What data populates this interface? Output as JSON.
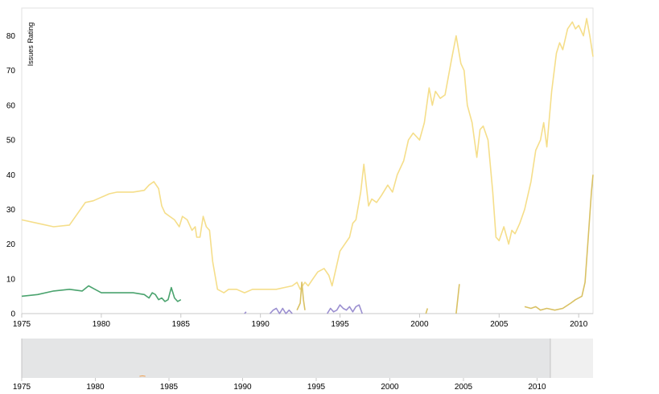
{
  "chart_data": {
    "type": "line",
    "title": "",
    "ylabel": "Issues Rating",
    "xlabel": "",
    "xlim": [
      1975,
      2010.9
    ],
    "ylim": [
      0,
      88
    ],
    "grid": false,
    "x_ticks": [
      "1975",
      "1980",
      "1985",
      "1990",
      "1995",
      "2000",
      "2005",
      "2010"
    ],
    "y_ticks": [
      "0",
      "10",
      "20",
      "30",
      "40",
      "50",
      "60",
      "70",
      "80"
    ],
    "navigator": {
      "xlim": [
        1975,
        2013.8
      ],
      "x_ticks": [
        "1975",
        "1980",
        "1985",
        "1990",
        "1995",
        "2000",
        "2005",
        "2010"
      ],
      "selected_range": [
        1975,
        2010.9
      ]
    },
    "series": [
      {
        "name": "series-light-yellow",
        "color": "#f5de8a",
        "points": [
          [
            1975,
            27
          ],
          [
            1976,
            26
          ],
          [
            1977,
            25
          ],
          [
            1978,
            25.5
          ],
          [
            1979,
            32
          ],
          [
            1979.5,
            32.5
          ],
          [
            1980,
            33.5
          ],
          [
            1980.5,
            34.5
          ],
          [
            1981,
            35
          ],
          [
            1982,
            35
          ],
          [
            1982.7,
            35.5
          ],
          [
            1983,
            37
          ],
          [
            1983.3,
            38
          ],
          [
            1983.6,
            36
          ],
          [
            1983.8,
            31
          ],
          [
            1984,
            29
          ],
          [
            1984.3,
            28
          ],
          [
            1984.6,
            27
          ],
          [
            1984.9,
            25
          ],
          [
            1985.1,
            28
          ],
          [
            1985.4,
            27
          ],
          [
            1985.7,
            24
          ],
          [
            1985.9,
            25
          ],
          [
            1986,
            22
          ],
          [
            1986.2,
            22
          ],
          [
            1986.4,
            28
          ],
          [
            1986.6,
            25
          ],
          [
            1986.8,
            24
          ],
          [
            1987,
            15
          ],
          [
            1987.3,
            7
          ],
          [
            1987.7,
            6
          ],
          [
            1988,
            7
          ],
          [
            1988.5,
            7
          ],
          [
            1989,
            6
          ],
          [
            1989.5,
            7
          ],
          [
            1990,
            7
          ],
          [
            1990.5,
            7
          ],
          [
            1991,
            7
          ],
          [
            1991.5,
            7.5
          ],
          [
            1992,
            8
          ],
          [
            1992.3,
            9
          ],
          [
            1992.5,
            7
          ],
          [
            1992.8,
            9
          ],
          [
            1993,
            8
          ],
          [
            1993.3,
            10
          ],
          [
            1993.6,
            12
          ],
          [
            1994,
            13
          ],
          [
            1994.3,
            11
          ],
          [
            1994.5,
            8
          ],
          [
            1994.8,
            14
          ],
          [
            1995,
            18
          ],
          [
            1995.3,
            20
          ],
          [
            1995.6,
            22
          ],
          [
            1995.8,
            26
          ],
          [
            1996,
            27
          ],
          [
            1996.3,
            35
          ],
          [
            1996.5,
            43
          ],
          [
            1996.8,
            31
          ],
          [
            1997,
            33
          ],
          [
            1997.3,
            32
          ],
          [
            1997.6,
            34
          ],
          [
            1998,
            37
          ],
          [
            1998.3,
            35
          ],
          [
            1998.6,
            40
          ],
          [
            1999,
            44
          ],
          [
            1999.3,
            50
          ],
          [
            1999.6,
            52
          ],
          [
            2000,
            50
          ],
          [
            2000.3,
            55
          ],
          [
            2000.6,
            65
          ],
          [
            2000.8,
            60
          ],
          [
            2001,
            64
          ],
          [
            2001.3,
            62
          ],
          [
            2001.6,
            63
          ],
          [
            2002,
            73
          ],
          [
            2002.3,
            80
          ],
          [
            2002.6,
            72
          ],
          [
            2002.8,
            70
          ],
          [
            2003,
            60
          ],
          [
            2003.3,
            55
          ],
          [
            2003.6,
            45
          ],
          [
            2003.8,
            53
          ],
          [
            2004,
            54
          ],
          [
            2004.3,
            50
          ],
          [
            2004.6,
            35
          ],
          [
            2004.8,
            22
          ],
          [
            2005,
            21
          ],
          [
            2005.3,
            25
          ],
          [
            2005.6,
            20
          ],
          [
            2005.8,
            24
          ],
          [
            2006,
            23
          ],
          [
            2006.3,
            26
          ],
          [
            2006.6,
            30
          ],
          [
            2007,
            38
          ],
          [
            2007.3,
            47
          ],
          [
            2007.6,
            50
          ],
          [
            2007.8,
            55
          ],
          [
            2008,
            48
          ],
          [
            2008.3,
            64
          ],
          [
            2008.6,
            75
          ],
          [
            2008.8,
            78
          ],
          [
            2009,
            76
          ],
          [
            2009.3,
            82
          ],
          [
            2009.6,
            84
          ],
          [
            2009.8,
            82
          ],
          [
            2010,
            83
          ],
          [
            2010.3,
            80
          ],
          [
            2010.5,
            85
          ],
          [
            2010.7,
            80
          ],
          [
            2010.9,
            74
          ]
        ]
      },
      {
        "name": "series-green",
        "color": "#4aa36e",
        "points": [
          [
            1975,
            5
          ],
          [
            1976,
            5.5
          ],
          [
            1977,
            6.5
          ],
          [
            1978,
            7
          ],
          [
            1978.8,
            6.5
          ],
          [
            1979.2,
            8
          ],
          [
            1979.6,
            7
          ],
          [
            1980,
            6
          ],
          [
            1981,
            6
          ],
          [
            1982,
            6
          ],
          [
            1982.7,
            5.5
          ],
          [
            1983,
            4.5
          ],
          [
            1983.2,
            6
          ],
          [
            1983.4,
            5.5
          ],
          [
            1983.6,
            4
          ],
          [
            1983.8,
            4.5
          ],
          [
            1984,
            3.5
          ],
          [
            1984.2,
            4
          ],
          [
            1984.4,
            7.5
          ],
          [
            1984.6,
            4.5
          ],
          [
            1984.8,
            3.5
          ],
          [
            1985,
            4
          ]
        ]
      },
      {
        "name": "series-mustard",
        "color": "#d9c164",
        "points": [
          [
            1992.3,
            1
          ],
          [
            1992.5,
            3
          ],
          [
            1992.6,
            9
          ],
          [
            1992.7,
            4
          ],
          [
            1992.8,
            1
          ],
          [
            2000.4,
            0
          ],
          [
            2000.5,
            1.5
          ],
          [
            2002.3,
            0
          ],
          [
            2002.5,
            8.5
          ],
          [
            2006.6,
            2
          ],
          [
            2007,
            1.5
          ],
          [
            2007.3,
            2
          ],
          [
            2007.6,
            1
          ],
          [
            2008,
            1.5
          ],
          [
            2008.5,
            1
          ],
          [
            2009,
            1.5
          ],
          [
            2009.5,
            3
          ],
          [
            2009.8,
            4
          ],
          [
            2010.2,
            5
          ],
          [
            2010.4,
            9
          ],
          [
            2010.6,
            22
          ],
          [
            2010.8,
            35
          ],
          [
            2010.9,
            40
          ]
        ]
      },
      {
        "name": "series-purple",
        "color": "#9b8fd0",
        "points": [
          [
            1989,
            0
          ],
          [
            1989.1,
            0.5
          ],
          [
            1990.6,
            0
          ],
          [
            1990.8,
            1
          ],
          [
            1991,
            1.5
          ],
          [
            1991.2,
            0
          ],
          [
            1991.4,
            1.5
          ],
          [
            1991.6,
            0
          ],
          [
            1991.8,
            1
          ],
          [
            1992,
            0
          ],
          [
            1994.2,
            0
          ],
          [
            1994.4,
            1.5
          ],
          [
            1994.6,
            0.5
          ],
          [
            1994.8,
            1
          ],
          [
            1995,
            2.5
          ],
          [
            1995.2,
            1.5
          ],
          [
            1995.4,
            1
          ],
          [
            1995.6,
            2
          ],
          [
            1995.8,
            0.5
          ],
          [
            1996,
            2
          ],
          [
            1996.2,
            2.5
          ],
          [
            1996.4,
            0
          ]
        ]
      }
    ],
    "navigator_series": [
      {
        "name": "series-orange-tick",
        "color": "#f0a050",
        "points": [
          [
            1983,
            0.5
          ],
          [
            1983.2,
            0.8
          ],
          [
            1983.4,
            0.5
          ]
        ]
      }
    ]
  }
}
